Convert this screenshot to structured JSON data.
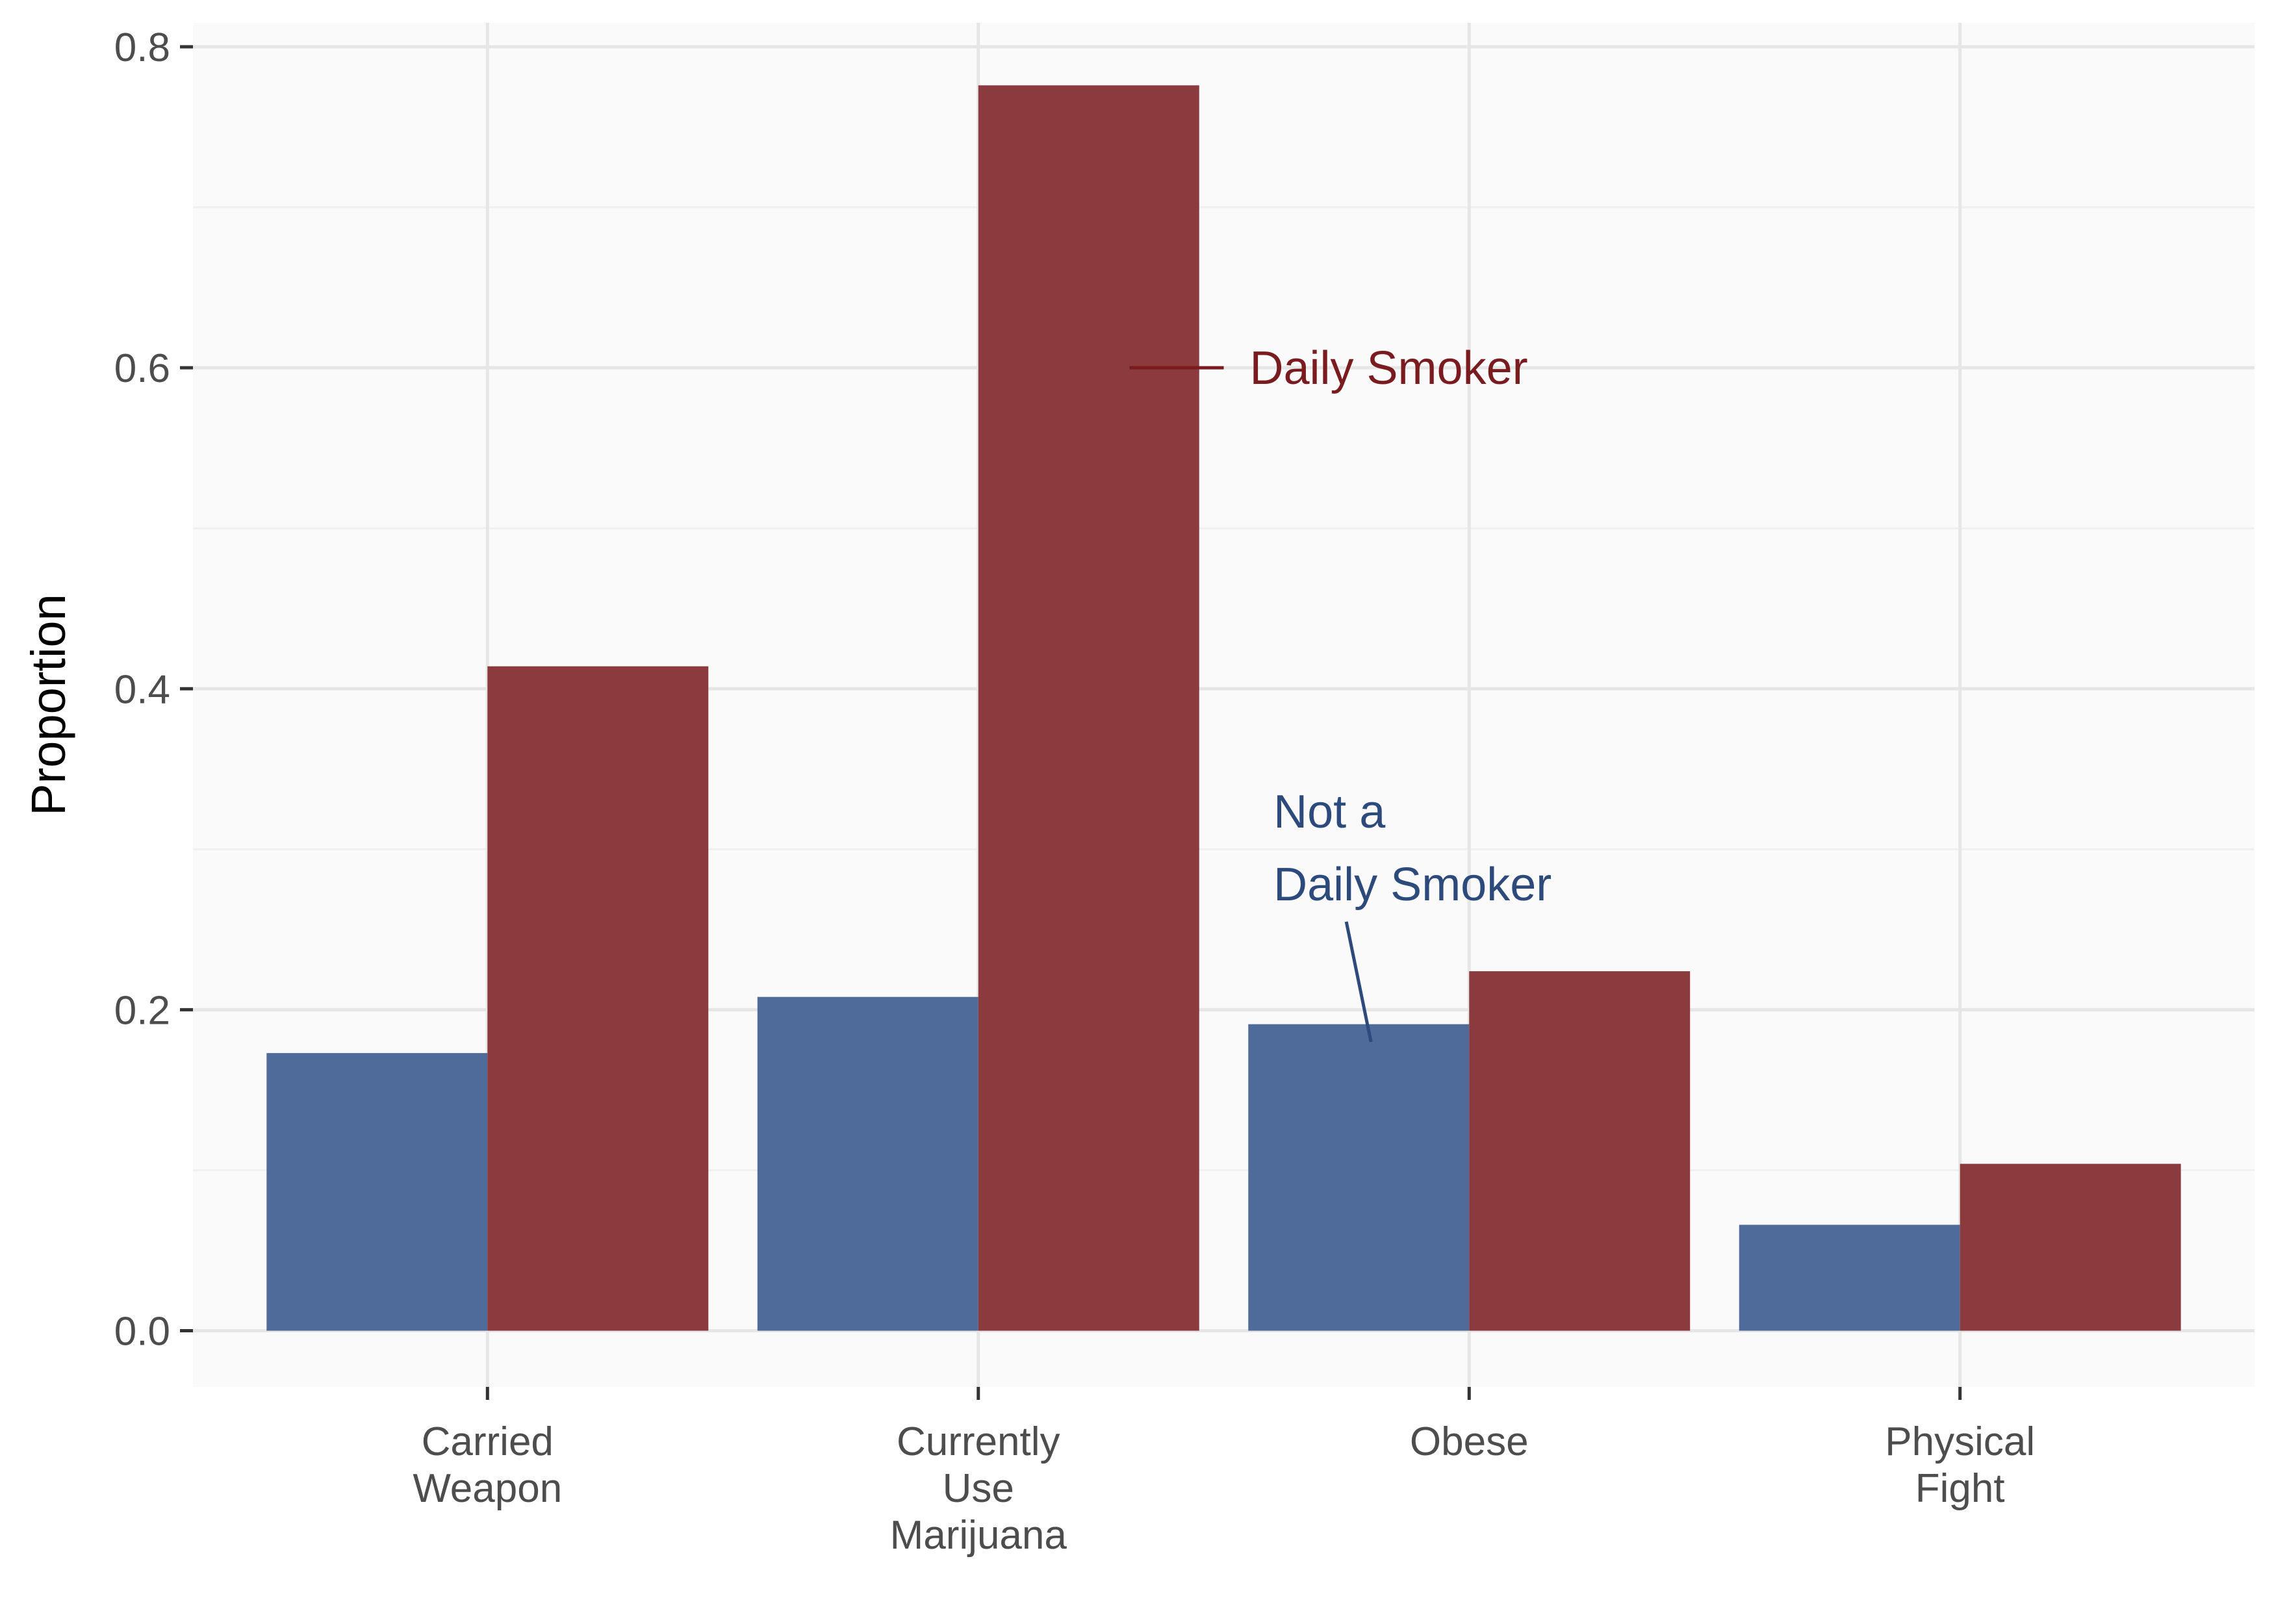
{
  "chart_data": {
    "type": "bar",
    "title": "",
    "xlabel": "",
    "ylabel": "Proportion",
    "ylim": [
      -0.035,
      0.815
    ],
    "yticks": [
      0.0,
      0.2,
      0.4,
      0.6,
      0.8
    ],
    "ytick_labels": [
      "0.0",
      "0.2",
      "0.4",
      "0.6",
      "0.8"
    ],
    "grid": true,
    "legend": "none",
    "categories": [
      [
        "Carried",
        "Weapon"
      ],
      [
        "Currently",
        "Use",
        "Marijuana"
      ],
      [
        "Obese"
      ],
      [
        "Physical",
        "Fight"
      ]
    ],
    "series": [
      {
        "color": "#4f6b9a",
        "values": [
          0.173,
          0.208,
          0.191,
          0.066
        ]
      },
      {
        "color": "#8b3a3d",
        "values": [
          0.414,
          0.776,
          0.224,
          0.104
        ]
      }
    ],
    "annotations": [
      {
        "lines": [
          "Daily Smoker"
        ],
        "color": "#7a1c1f",
        "series": 1,
        "x": 1.5,
        "y": 0.6
      },
      {
        "lines": [
          "Not a",
          "Daily Smoker"
        ],
        "color": "#2d4a7c",
        "series": 0,
        "x": 1.8,
        "y": 0.18
      }
    ],
    "colors": {
      "panel_background": "#fafafa",
      "grid_major": "#e6e6e6",
      "grid_minor": "#f0f0f0",
      "tick_mark": "#333333"
    }
  }
}
